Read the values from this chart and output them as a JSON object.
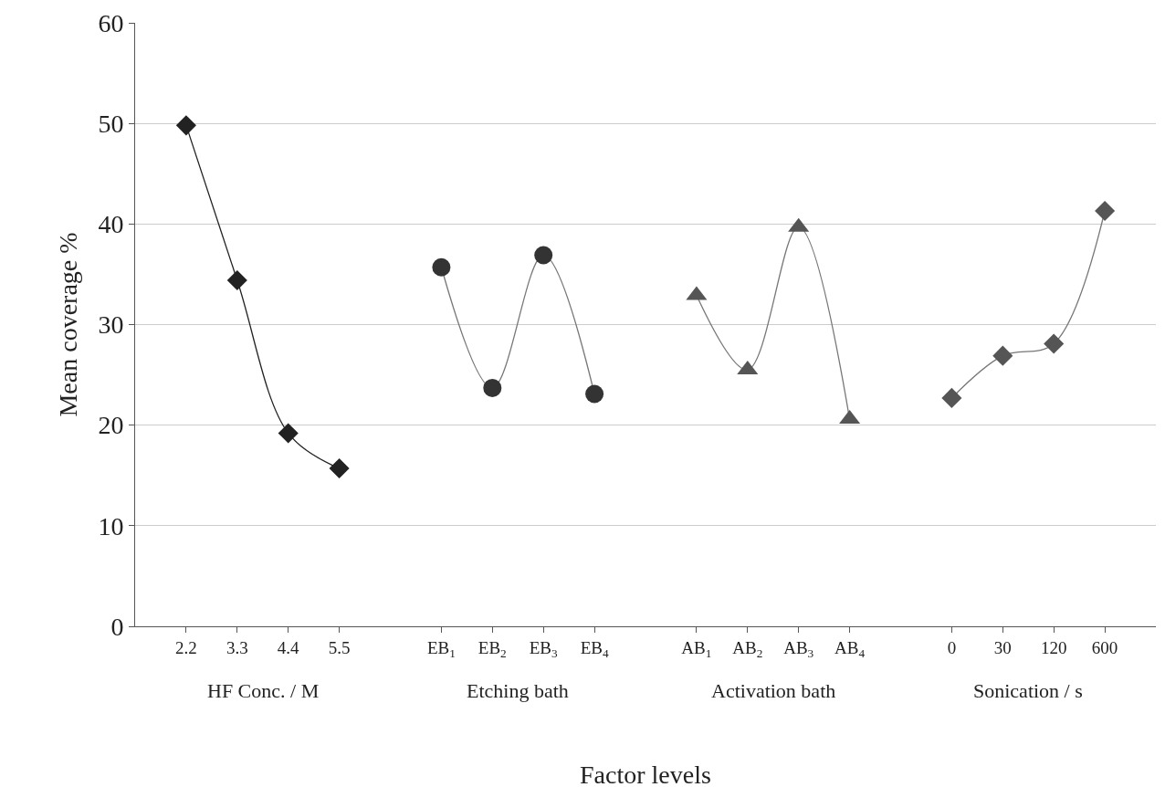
{
  "chart_data": {
    "type": "line",
    "xlabel": "Factor levels",
    "ylabel": "Mean coverage %",
    "categories": [
      null,
      "2.2",
      "3.3",
      "4.4",
      "5.5",
      null,
      "EB$_{1}$",
      "EB$_{2}$",
      "EB$_{3}$",
      "EB$_{4}$",
      null,
      "AB$_{1}$",
      "AB$_{2}$",
      "AB$_{3}$",
      "AB$_{4}$",
      null,
      "0",
      "30",
      "120",
      "600",
      null
    ],
    "series": [
      {
        "color": "#222222",
        "marker": "diamond",
        "values": [
          null,
          49.8,
          34.4,
          19.2,
          15.7,
          null,
          null,
          null,
          null,
          null,
          null,
          null,
          null,
          null,
          null,
          null,
          null,
          null,
          null,
          null,
          null
        ]
      },
      {
        "color": "#333333",
        "marker": "circle",
        "values": [
          null,
          null,
          null,
          null,
          null,
          null,
          35.7,
          23.7,
          36.9,
          23.1,
          null,
          null,
          null,
          null,
          null,
          null,
          null,
          null,
          null,
          null,
          null
        ]
      },
      {
        "color": "#555555",
        "marker": "triangle",
        "values": [
          null,
          null,
          null,
          null,
          null,
          null,
          null,
          null,
          null,
          null,
          null,
          32.9,
          25.5,
          39.7,
          20.6,
          null,
          null,
          null,
          null,
          null,
          null
        ]
      },
      {
        "color": "#555555",
        "marker": "diamond",
        "values": [
          null,
          null,
          null,
          null,
          null,
          null,
          null,
          null,
          null,
          null,
          null,
          null,
          null,
          null,
          null,
          null,
          22.7,
          26.9,
          28.1,
          41.3,
          null
        ]
      }
    ],
    "annotations": [
      "HF Conc. / M",
      "Etching bath",
      "Activation bath",
      "Sonication / s"
    ],
    "ylim": [
      0,
      60
    ],
    "yticks": [
      0,
      10,
      20,
      30,
      40,
      50,
      60
    ],
    "grid": "y"
  }
}
